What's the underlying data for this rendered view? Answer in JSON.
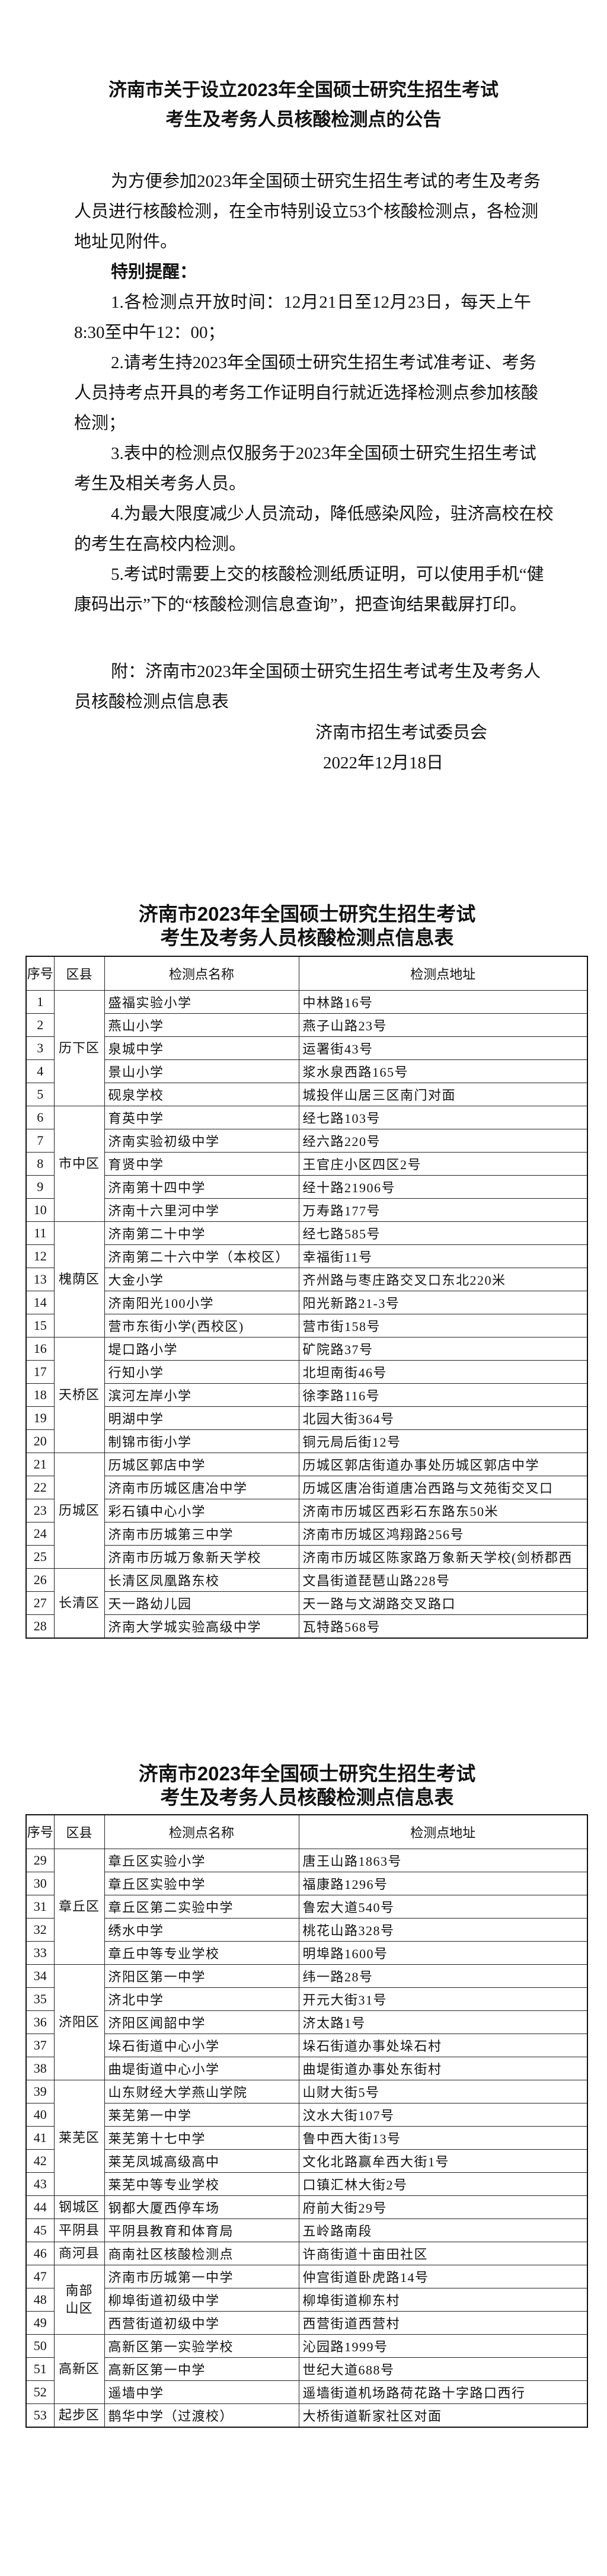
{
  "notice": {
    "title_lines": [
      "济南市关于设立2023年全国硕士研究生招生考试",
      "考生及考务人员核酸检测点的公告"
    ],
    "body_lines": [
      {
        "text": "为方便参加2023年全国硕士研究生招生考试的考生及考务",
        "indent": true
      },
      {
        "text": "人员进行核酸检测，在全市特别设立53个核酸检测点，各检测"
      },
      {
        "text": "地址见附件。",
        "last": true
      },
      {
        "text": "特别提醒：",
        "indent": true,
        "bold": true,
        "last": true
      },
      {
        "text": "1.各检测点开放时间：12月21日至12月23日，每天上午",
        "indent": true
      },
      {
        "text": "8:30至中午12：00；",
        "last": true
      },
      {
        "text": "2.请考生持2023年全国硕士研究生招生考试准考证、考务",
        "indent": true
      },
      {
        "text": "人员持考点开具的考务工作证明自行就近选择检测点参加核酸"
      },
      {
        "text": "检测；",
        "last": true
      },
      {
        "text": "3.表中的检测点仅服务于2023年全国硕士研究生招生考试",
        "indent": true
      },
      {
        "text": "考生及相关考务人员。",
        "last": true
      },
      {
        "text": "4.为最大限度减少人员流动，降低感染风险，驻济高校在校",
        "indent": true
      },
      {
        "text": "的考生在高校内检测。",
        "last": true
      },
      {
        "text": "5.考试时需要上交的核酸检测纸质证明，可以使用手机“健",
        "indent": true
      },
      {
        "text": "康码出示”下的“核酸检测信息查询”，把查询结果截屏打印。",
        "last": true
      }
    ],
    "annex_lines": [
      {
        "text": "附：济南市2023年全国硕士研究生招生考试考生及考务人",
        "indent": true
      },
      {
        "text": "员核酸检测点信息表",
        "last": true
      }
    ],
    "signature": "济南市招生考试委员会",
    "date": "2022年12月18日"
  },
  "tables": [
    {
      "title_lines": [
        "济南市2023年全国硕士研究生招生考试",
        "考生及考务人员核酸检测点信息表"
      ],
      "headers": {
        "no": "序号",
        "district": "区县",
        "name": "检测点名称",
        "address": "检测点地址"
      },
      "groups": [
        {
          "district": "历下区",
          "rows": [
            {
              "no": "1",
              "name": "盛福实验小学",
              "address": "中林路16号"
            },
            {
              "no": "2",
              "name": "燕山小学",
              "address": "燕子山路23号"
            },
            {
              "no": "3",
              "name": "泉城中学",
              "address": "运署街43号"
            },
            {
              "no": "4",
              "name": "景山小学",
              "address": "浆水泉西路165号"
            },
            {
              "no": "5",
              "name": "砚泉学校",
              "address": "城投伴山居三区南门对面"
            }
          ]
        },
        {
          "district": "市中区",
          "rows": [
            {
              "no": "6",
              "name": "育英中学",
              "address": "经七路103号"
            },
            {
              "no": "7",
              "name": "济南实验初级中学",
              "address": "经六路220号"
            },
            {
              "no": "8",
              "name": "育贤中学",
              "address": "王官庄小区四区2号"
            },
            {
              "no": "9",
              "name": "济南第十四中学",
              "address": "经十路21906号"
            },
            {
              "no": "10",
              "name": "济南十六里河中学",
              "address": "万寿路177号"
            }
          ]
        },
        {
          "district": "槐荫区",
          "rows": [
            {
              "no": "11",
              "name": "济南第二十中学",
              "address": "经七路585号"
            },
            {
              "no": "12",
              "name": "济南第二十六中学（本校区）",
              "address": "幸福街11号"
            },
            {
              "no": "13",
              "name": "大金小学",
              "address": "齐州路与枣庄路交叉口东北220米"
            },
            {
              "no": "14",
              "name": "济南阳光100小学",
              "address": "阳光新路21-3号"
            },
            {
              "no": "15",
              "name": "营市东街小学(西校区)",
              "address": "营市街158号"
            }
          ]
        },
        {
          "district": "天桥区",
          "rows": [
            {
              "no": "16",
              "name": "堤口路小学",
              "address": "矿院路37号"
            },
            {
              "no": "17",
              "name": "行知小学",
              "address": "北坦南街46号"
            },
            {
              "no": "18",
              "name": "滨河左岸小学",
              "address": "徐李路116号"
            },
            {
              "no": "19",
              "name": "明湖中学",
              "address": "北园大街364号"
            },
            {
              "no": "20",
              "name": "制锦市街小学",
              "address": "铜元局后街12号"
            }
          ]
        },
        {
          "district": "历城区",
          "rows": [
            {
              "no": "21",
              "name": "历城区郭店中学",
              "address": "历城区郭店街道办事处历城区郭店中学"
            },
            {
              "no": "22",
              "name": "济南市历城区唐冶中学",
              "address": "历城区唐冶街道唐冶西路与文苑街交叉口"
            },
            {
              "no": "23",
              "name": "彩石镇中心小学",
              "address": "济南市历城区西彩石东路东50米"
            },
            {
              "no": "24",
              "name": "济南市历城第三中学",
              "address": "济南市历城区鸿翔路256号"
            },
            {
              "no": "25",
              "name": "济南市历城万象新天学校",
              "address": "济南市历城区陈家路万象新天学校(剑桥郡西"
            }
          ]
        },
        {
          "district": "长清区",
          "rows": [
            {
              "no": "26",
              "name": "长清区凤凰路东校",
              "address": "文昌街道琵琶山路228号"
            },
            {
              "no": "27",
              "name": "天一路幼儿园",
              "address": "天一路与文湖路交叉路口"
            },
            {
              "no": "28",
              "name": "济南大学城实验高级中学",
              "address": "瓦特路568号"
            }
          ]
        }
      ]
    },
    {
      "title_lines": [
        "济南市2023年全国硕士研究生招生考试",
        "考生及考务人员核酸检测点信息表"
      ],
      "headers": {
        "no": "序号",
        "district": "区县",
        "name": "检测点名称",
        "address": "检测点地址"
      },
      "groups": [
        {
          "district": "章丘区",
          "rows": [
            {
              "no": "29",
              "name": "章丘区实验小学",
              "address": "唐王山路1863号"
            },
            {
              "no": "30",
              "name": "章丘区实验中学",
              "address": "福康路1296号"
            },
            {
              "no": "31",
              "name": "章丘区第二实验中学",
              "address": "鲁宏大道540号"
            },
            {
              "no": "32",
              "name": "绣水中学",
              "address": "桃花山路328号"
            },
            {
              "no": "33",
              "name": "章丘中等专业学校",
              "address": "明埠路1600号"
            }
          ]
        },
        {
          "district": "济阳区",
          "rows": [
            {
              "no": "34",
              "name": "济阳区第一中学",
              "address": "纬一路28号"
            },
            {
              "no": "35",
              "name": "济北中学",
              "address": "开元大街31号"
            },
            {
              "no": "36",
              "name": "济阳区闻韶中学",
              "address": "济太路1号"
            },
            {
              "no": "37",
              "name": "垛石街道中心小学",
              "address": "垛石街道办事处垛石村"
            },
            {
              "no": "38",
              "name": "曲堤街道中心小学",
              "address": "曲堤街道办事处东街村"
            }
          ]
        },
        {
          "district": "莱芜区",
          "rows": [
            {
              "no": "39",
              "name": "山东财经大学燕山学院",
              "address": "山财大街5号"
            },
            {
              "no": "40",
              "name": "莱芜第一中学",
              "address": "汶水大街107号"
            },
            {
              "no": "41",
              "name": "莱芜第十七中学",
              "address": "鲁中西大街13号"
            },
            {
              "no": "42",
              "name": "莱芜凤城高级高中",
              "address": "文化北路赢牟西大街1号"
            },
            {
              "no": "43",
              "name": "莱芜中等专业学校",
              "address": "口镇汇林大街2号"
            }
          ]
        },
        {
          "district": "钢城区",
          "rows": [
            {
              "no": "44",
              "name": "钢都大厦西停车场",
              "address": "府前大街29号"
            }
          ]
        },
        {
          "district": "平阴县",
          "rows": [
            {
              "no": "45",
              "name": "平阴县教育和体育局",
              "address": "五岭路南段"
            }
          ]
        },
        {
          "district": "商河县",
          "rows": [
            {
              "no": "46",
              "name": "商南社区核酸检测点",
              "address": "许商街道十亩田社区"
            }
          ]
        },
        {
          "district": "南部山区",
          "rows": [
            {
              "no": "47",
              "name": "济南市历城第一中学",
              "address": "仲宫街道卧虎路14号"
            },
            {
              "no": "48",
              "name": "柳埠街道初级中学",
              "address": "柳埠街道柳东村"
            },
            {
              "no": "49",
              "name": "西营街道初级中学",
              "address": "西营街道西营村"
            }
          ]
        },
        {
          "district": "高新区",
          "rows": [
            {
              "no": "50",
              "name": "高新区第一实验学校",
              "address": "沁园路1999号"
            },
            {
              "no": "51",
              "name": "高新区第一中学",
              "address": "世纪大道688号"
            },
            {
              "no": "52",
              "name": "遥墙中学",
              "address": "遥墙街道机场路荷花路十字路口西行"
            }
          ]
        },
        {
          "district": "起步区",
          "rows": [
            {
              "no": "53",
              "name": "鹊华中学（过渡校）",
              "address": "大桥街道靳家社区对面"
            }
          ]
        }
      ]
    }
  ]
}
